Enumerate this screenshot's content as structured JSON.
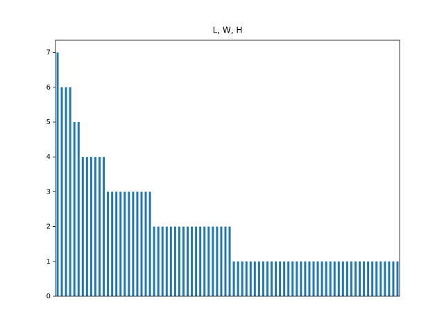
{
  "chart_data": {
    "type": "bar",
    "title": "L, W, H",
    "categories": [
      null,
      null,
      null,
      null,
      null,
      null,
      null,
      null,
      null,
      null,
      null,
      null,
      null,
      null,
      null,
      null,
      null,
      null,
      null,
      null,
      null,
      null,
      null,
      null,
      null,
      null,
      null,
      null,
      null,
      null,
      null,
      null,
      null,
      null,
      null,
      null,
      null,
      null,
      null,
      null,
      null,
      null,
      null,
      null,
      null,
      null,
      null,
      null,
      null,
      null,
      null,
      null,
      null,
      null,
      null,
      null,
      null,
      null,
      null,
      null,
      null,
      null,
      null,
      null,
      null,
      null,
      null,
      null,
      null,
      null,
      null,
      null,
      null,
      null,
      null,
      null,
      null,
      null,
      null,
      null,
      null,
      null
    ],
    "values": [
      7,
      6,
      6,
      6,
      5,
      5,
      4,
      4,
      4,
      4,
      4,
      4,
      3,
      3,
      3,
      3,
      3,
      3,
      3,
      3,
      3,
      3,
      3,
      2,
      2,
      2,
      2,
      2,
      2,
      2,
      2,
      2,
      2,
      2,
      2,
      2,
      2,
      2,
      2,
      2,
      2,
      2,
      1,
      1,
      1,
      1,
      1,
      1,
      1,
      1,
      1,
      1,
      1,
      1,
      1,
      1,
      1,
      1,
      1,
      1,
      1,
      1,
      1,
      1,
      1,
      1,
      1,
      1,
      1,
      1,
      1,
      1,
      1,
      1,
      1,
      1,
      1,
      1,
      1,
      1,
      1,
      1
    ],
    "color": "#1f77b4",
    "ylim": [
      0,
      7.35
    ],
    "yticks": [
      0,
      1,
      2,
      3,
      4,
      5,
      6,
      7
    ]
  }
}
